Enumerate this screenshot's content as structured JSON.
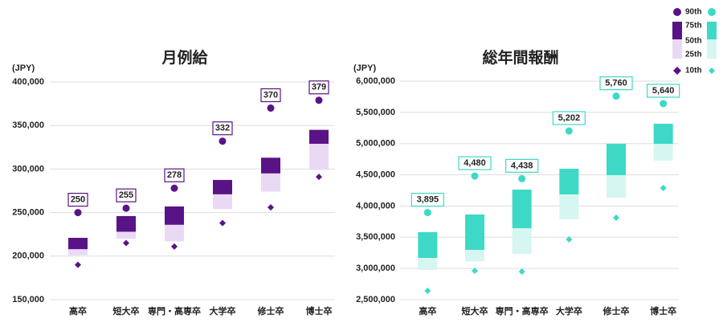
{
  "legend": [
    "90th",
    "75th",
    "50th",
    "25th",
    "10th"
  ],
  "chart_data": [
    {
      "type": "percentile",
      "title": "月例給",
      "y_label": "(JPY)",
      "categories": [
        "高卒",
        "短大卒",
        "専門・高専卒",
        "大学卒",
        "修士卒",
        "博士卒"
      ],
      "p90": [
        250000,
        255000,
        278000,
        332000,
        370000,
        379000
      ],
      "p90_labels": [
        "250",
        "255",
        "278",
        "332",
        "370",
        "379"
      ],
      "p75": [
        221000,
        246000,
        257000,
        287500,
        313000,
        345000
      ],
      "p50": [
        208000,
        228000,
        236000,
        271000,
        295000,
        329000
      ],
      "p25": [
        201000,
        220000,
        217000,
        254000,
        274000,
        299000
      ],
      "p10": [
        190000,
        215000,
        211000,
        238000,
        256000,
        291000
      ],
      "dark": "#5a1387",
      "light": "#ead9f5",
      "ylim": [
        150000,
        400000
      ],
      "yticks": [
        {
          "value": 150000,
          "label": "150,000"
        },
        {
          "value": 200000,
          "label": "200,000"
        },
        {
          "value": 250000,
          "label": "250,000"
        },
        {
          "value": 300000,
          "label": "300,000"
        },
        {
          "value": 350000,
          "label": "350,000"
        },
        {
          "value": 400000,
          "label": "400,000"
        }
      ],
      "grid": true
    },
    {
      "type": "percentile",
      "title": "総年間報酬",
      "y_label": "(JPY)",
      "categories": [
        "高卒",
        "短大卒",
        "専門・高専卒",
        "大学卒",
        "修士卒",
        "博士卒"
      ],
      "p90": [
        3895000,
        4480000,
        4438000,
        5202000,
        5760000,
        5640000
      ],
      "p90_labels": [
        "3,895",
        "4,480",
        "4,438",
        "5,202",
        "5,760",
        "5,640"
      ],
      "p75": [
        3581000,
        3864000,
        4263000,
        4597000,
        4996000,
        5318000
      ],
      "p50": [
        3169000,
        3298000,
        3645000,
        4186000,
        4494000,
        4996000
      ],
      "p25": [
        2976000,
        3114000,
        3233000,
        3787000,
        4134000,
        4726000
      ],
      "p10": [
        2642000,
        2963000,
        2950000,
        3465000,
        3813000,
        4289000
      ],
      "dark": "#3dd9c6",
      "light": "#d5f6f1",
      "ylim": [
        2500000,
        6000000
      ],
      "yticks": [
        {
          "value": 2500000,
          "label": "2,500,000"
        },
        {
          "value": 3000000,
          "label": "3,000,000"
        },
        {
          "value": 3500000,
          "label": "3,500,000"
        },
        {
          "value": 4000000,
          "label": "4,000,000"
        },
        {
          "value": 4500000,
          "label": "4,500,000"
        },
        {
          "value": 5000000,
          "label": "5,000,000"
        },
        {
          "value": 5500000,
          "label": "5,500,000"
        },
        {
          "value": 6000000,
          "label": "6,000,000"
        }
      ],
      "grid": true
    }
  ]
}
